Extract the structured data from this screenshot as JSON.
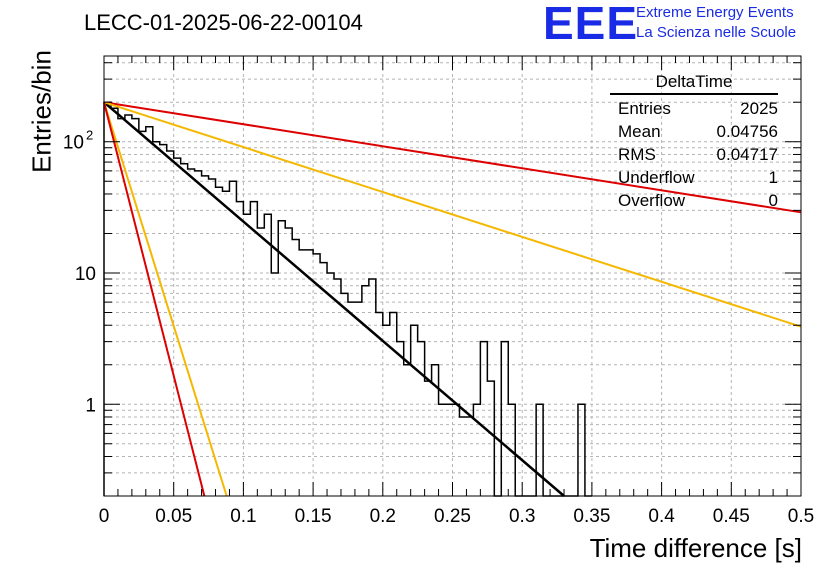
{
  "header": {
    "run_id": "LECC-01-2025-06-22-00104",
    "logo_text": "EEE",
    "logo_line1": "Extreme Energy Events",
    "logo_line2": "La Scienza nelle Scuole"
  },
  "stats_box": {
    "title": "DeltaTime",
    "rows": [
      {
        "label": "Entries",
        "value": "2025"
      },
      {
        "label": "Mean",
        "value": "0.04756"
      },
      {
        "label": "RMS",
        "value": "0.04717"
      },
      {
        "label": "Underflow",
        "value": "1"
      },
      {
        "label": "Overflow",
        "value": "0"
      }
    ]
  },
  "chart_data": {
    "type": "line",
    "xlabel": "Time difference [s]",
    "ylabel": "Entries/bin",
    "xlim": [
      0,
      0.5
    ],
    "ylim": [
      0.2,
      450
    ],
    "log_y": true,
    "grid": true,
    "x_ticks": [
      "0",
      "0.05",
      "0.1",
      "0.15",
      "0.2",
      "0.25",
      "0.3",
      "0.35",
      "0.4",
      "0.45",
      "0.5"
    ],
    "y_ticks": [
      {
        "value": 1,
        "label": "1"
      },
      {
        "value": 10,
        "label": "10"
      },
      {
        "value": 100,
        "label": "10",
        "exponent": "2"
      }
    ],
    "histogram": {
      "bin_width": 0.005,
      "color": "#000000",
      "values": [
        200,
        180,
        150,
        160,
        150,
        120,
        130,
        100,
        95,
        85,
        75,
        68,
        62,
        60,
        55,
        52,
        45,
        42,
        50,
        35,
        28,
        35,
        22,
        28,
        10,
        25,
        22,
        18,
        15,
        15,
        14,
        12,
        10,
        9,
        7,
        6,
        6,
        8,
        9,
        5,
        4,
        5,
        3,
        2,
        4,
        3,
        1.5,
        2,
        1,
        1,
        1,
        0.8,
        0.8,
        1,
        3,
        1.5,
        0.2,
        3,
        1,
        0.2,
        0.2,
        0.2,
        1,
        0.2,
        0.2,
        0.2,
        0.2,
        0.2,
        1,
        0.2
      ]
    },
    "fits": [
      {
        "color": "#000000",
        "x": [
          0,
          0.33
        ],
        "y": [
          200,
          0.2
        ]
      },
      {
        "color": "#dd0000",
        "x": [
          0,
          0.5
        ],
        "y": [
          200,
          29
        ]
      },
      {
        "color": "#f5b800",
        "x": [
          0,
          0.5
        ],
        "y": [
          200,
          3.9
        ]
      },
      {
        "color": "#f5b800",
        "x": [
          0,
          0.088
        ],
        "y": [
          200,
          0.2
        ]
      },
      {
        "color": "#dd0000",
        "x": [
          0,
          0.072
        ],
        "y": [
          200,
          0.2
        ]
      }
    ]
  }
}
